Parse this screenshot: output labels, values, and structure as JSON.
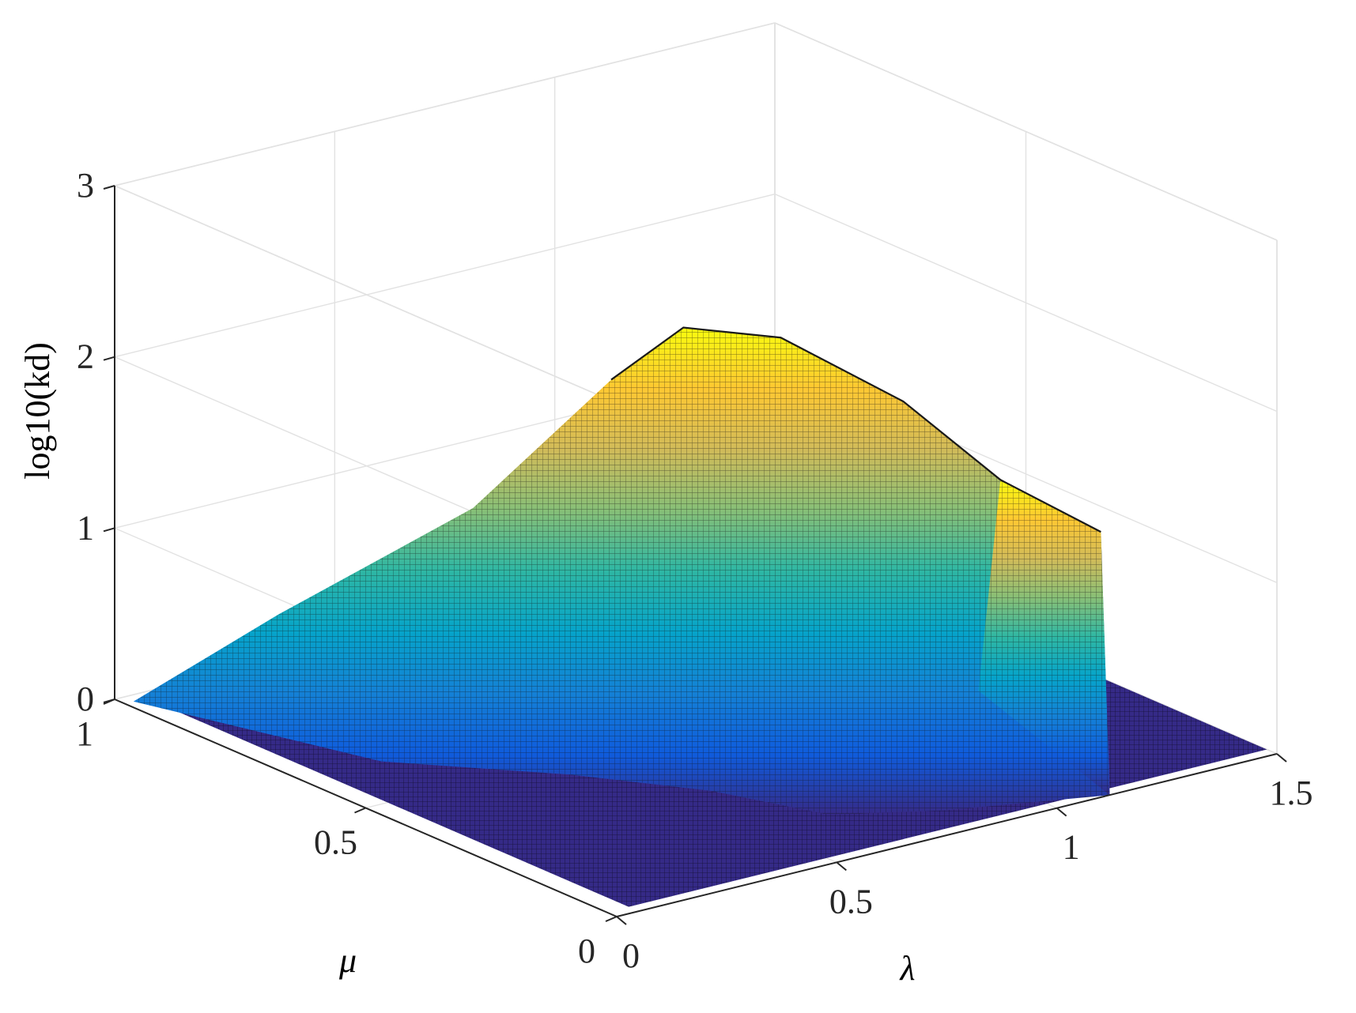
{
  "chart_data": {
    "type": "surface",
    "title": "",
    "xlabel": "λ",
    "ylabel": "μ",
    "zlabel": "log10(kd)",
    "xlim": [
      0,
      1.5
    ],
    "ylim": [
      0,
      1
    ],
    "zlim": [
      0,
      3
    ],
    "xticks": [
      0,
      0.5,
      1,
      1.5
    ],
    "yticks": [
      0,
      0.5,
      1
    ],
    "zticks": [
      0,
      1,
      2,
      3
    ],
    "xtick_labels": [
      "0",
      "0.5",
      "1",
      "1.5"
    ],
    "ytick_labels": [
      "0",
      "0.5",
      "1"
    ],
    "ztick_labels": [
      "0",
      "1",
      "2",
      "3"
    ],
    "grid": true,
    "colormap": "parula",
    "colormap_stops": [
      "#352a87",
      "#0f5cdd",
      "#1481d6",
      "#06a4ca",
      "#2eb7a4",
      "#87bf77",
      "#d1bb59",
      "#fec832",
      "#f9fb0e"
    ],
    "ridge_points": [
      {
        "lambda": 0.9,
        "mu": 0.8,
        "z": 1.55
      },
      {
        "lambda": 0.95,
        "mu": 0.7,
        "z": 1.95
      },
      {
        "lambda": 1.0,
        "mu": 0.55,
        "z": 2.05
      },
      {
        "lambda": 1.05,
        "mu": 0.35,
        "z": 1.9
      },
      {
        "lambda": 1.1,
        "mu": 0.2,
        "z": 1.6
      },
      {
        "lambda": 1.1,
        "mu": 0.0,
        "z": 1.55
      }
    ],
    "surface_extent": {
      "lambda": [
        0,
        1.5
      ],
      "mu": [
        0,
        1
      ]
    },
    "z_floor": 0
  }
}
